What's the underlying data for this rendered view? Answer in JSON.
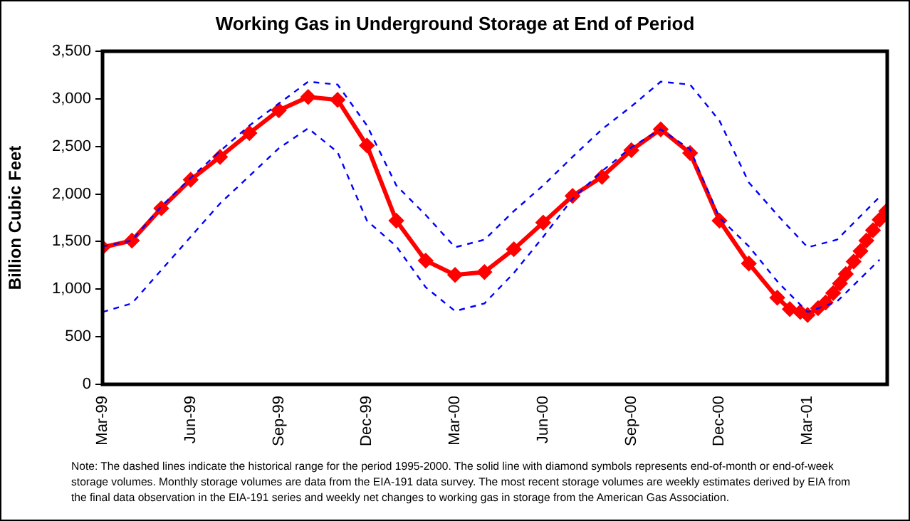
{
  "chart_data": {
    "type": "line",
    "title": "Working Gas in Underground Storage at End of Period",
    "ylabel": "Billion Cubic Feet",
    "ylim": [
      0,
      3500
    ],
    "yticks": [
      0,
      500,
      {
        "value": 1000,
        "label": "1,000"
      },
      {
        "value": 1500,
        "label": "1,500"
      },
      {
        "value": 2000,
        "label": "2,000"
      },
      {
        "value": 2500,
        "label": "2,500"
      },
      {
        "value": 3000,
        "label": "3,000"
      },
      {
        "value": 3500,
        "label": "3,500"
      }
    ],
    "xlim": [
      "1999-03-01",
      "2001-05-23"
    ],
    "xticks": [
      {
        "value": "1999-03-01",
        "label": "Mar-99"
      },
      {
        "value": "1999-06-01",
        "label": "Jun-99"
      },
      {
        "value": "1999-09-01",
        "label": "Sep-99"
      },
      {
        "value": "1999-12-01",
        "label": "Dec-99"
      },
      {
        "value": "2000-03-01",
        "label": "Mar-00"
      },
      {
        "value": "2000-06-01",
        "label": "Jun-00"
      },
      {
        "value": "2000-09-01",
        "label": "Sep-00"
      },
      {
        "value": "2000-12-01",
        "label": "Dec-00"
      },
      {
        "value": "2001-03-01",
        "label": "Mar-01"
      }
    ],
    "grid": false,
    "legend": false,
    "series": [
      {
        "color": "#0000ff",
        "line_style": "dashed",
        "marker": "none",
        "x": [
          "1999-03-01",
          "1999-04-01",
          "1999-05-01",
          "1999-06-01",
          "1999-07-01",
          "1999-08-01",
          "1999-09-01",
          "1999-10-01",
          "1999-11-01",
          "1999-12-01",
          "2000-01-01",
          "2000-02-01",
          "2000-03-01",
          "2000-04-01",
          "2000-05-01",
          "2000-06-01",
          "2000-07-01",
          "2000-08-01",
          "2000-09-01",
          "2000-10-01",
          "2000-11-01",
          "2000-12-01",
          "2001-01-01",
          "2001-02-01",
          "2001-03-01",
          "2001-04-01",
          "2001-05-15"
        ],
        "values": [
          1450,
          1510,
          1870,
          2170,
          2450,
          2720,
          2950,
          3180,
          3150,
          2720,
          2090,
          1780,
          1440,
          1520,
          1820,
          2090,
          2390,
          2680,
          2920,
          3180,
          3150,
          2770,
          2120,
          1770,
          1440,
          1520,
          1970
        ]
      },
      {
        "color": "#0000ff",
        "line_style": "dashed",
        "marker": "none",
        "x": [
          "1999-03-01",
          "1999-04-01",
          "1999-05-01",
          "1999-06-01",
          "1999-07-01",
          "1999-08-01",
          "1999-09-01",
          "1999-10-01",
          "1999-11-01",
          "1999-12-01",
          "2000-01-01",
          "2000-02-01",
          "2000-03-01",
          "2000-04-01",
          "2000-05-01",
          "2000-06-01",
          "2000-07-01",
          "2000-08-01",
          "2000-09-01",
          "2000-10-01",
          "2000-11-01",
          "2000-12-01",
          "2001-01-01",
          "2001-02-01",
          "2001-03-01",
          "2001-04-01",
          "2001-05-15"
        ],
        "values": [
          760,
          850,
          1200,
          1550,
          1900,
          2190,
          2480,
          2690,
          2440,
          1720,
          1450,
          1020,
          770,
          850,
          1170,
          1550,
          1950,
          2240,
          2490,
          2680,
          2470,
          1750,
          1450,
          1070,
          760,
          870,
          1310
        ]
      },
      {
        "color": "#ff0000",
        "line_style": "solid",
        "marker": "diamond",
        "x": [
          "1999-03-01",
          "1999-04-01",
          "1999-05-01",
          "1999-06-01",
          "1999-07-01",
          "1999-08-01",
          "1999-09-01",
          "1999-10-01",
          "1999-11-01",
          "1999-12-01",
          "2000-01-01",
          "2000-02-01",
          "2000-03-01",
          "2000-04-01",
          "2000-05-01",
          "2000-06-01",
          "2000-07-01",
          "2000-08-01",
          "2000-09-01",
          "2000-10-01",
          "2000-11-01",
          "2000-12-01",
          "2001-01-01",
          "2001-01-31",
          "2001-02-12",
          "2001-02-22",
          "2001-03-01",
          "2001-03-12",
          "2001-03-20",
          "2001-03-28",
          "2001-04-04",
          "2001-04-10",
          "2001-04-18",
          "2001-04-25",
          "2001-05-01",
          "2001-05-08",
          "2001-05-15",
          "2001-05-22"
        ],
        "values": [
          1440,
          1510,
          1850,
          2150,
          2390,
          2640,
          2880,
          3020,
          2990,
          2510,
          1720,
          1300,
          1150,
          1180,
          1420,
          1700,
          1980,
          2180,
          2460,
          2680,
          2430,
          1720,
          1270,
          910,
          790,
          760,
          730,
          800,
          860,
          960,
          1060,
          1160,
          1290,
          1400,
          1510,
          1620,
          1730,
          1820
        ]
      }
    ],
    "annotations": [
      "Note: The dashed lines indicate the historical range for the period 1995-2000.  The solid line with diamond symbols represents end-of-month or end-of-week storage volumes.  Monthly storage volumes are data from the EIA-191 data survey.  The most recent storage volumes are weekly estimates derived by EIA from the final data observation in the EIA-191 series and weekly net changes to working gas in storage from the American Gas Association."
    ]
  }
}
